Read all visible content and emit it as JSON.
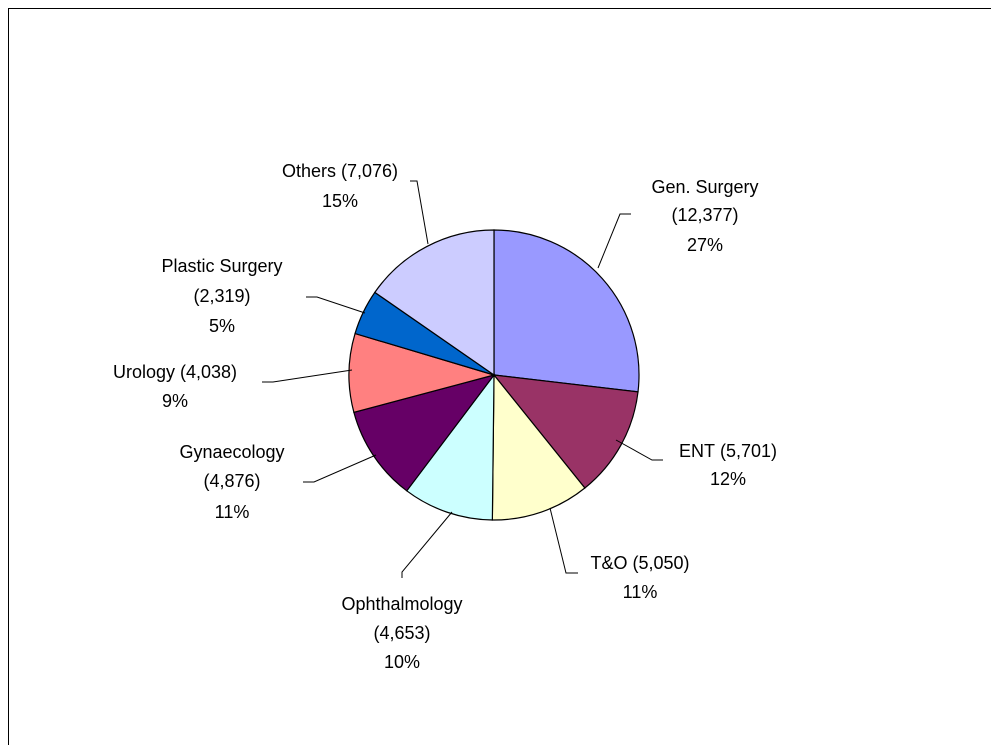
{
  "chart_data": {
    "type": "pie",
    "categories": [
      "Gen. Surgery",
      "ENT",
      "T&O",
      "Ophthalmology",
      "Gynaecology",
      "Urology",
      "Plastic Surgery",
      "Others"
    ],
    "values": [
      12377,
      5701,
      5050,
      4653,
      4876,
      4038,
      2319,
      7076
    ],
    "value_labels": [
      "(12,377)",
      "(5,701)",
      "(5,050)",
      "(4,653)",
      "(4,876)",
      "(4,038)",
      "(2,319)",
      "(7,076)"
    ],
    "percent_labels": [
      "27%",
      "12%",
      "11%",
      "10%",
      "11%",
      "9%",
      "5%",
      "15%"
    ],
    "colors": [
      "#9999ff",
      "#993366",
      "#ffffcc",
      "#ccffff",
      "#660066",
      "#ff8080",
      "#0066cc",
      "#ccccff"
    ]
  }
}
